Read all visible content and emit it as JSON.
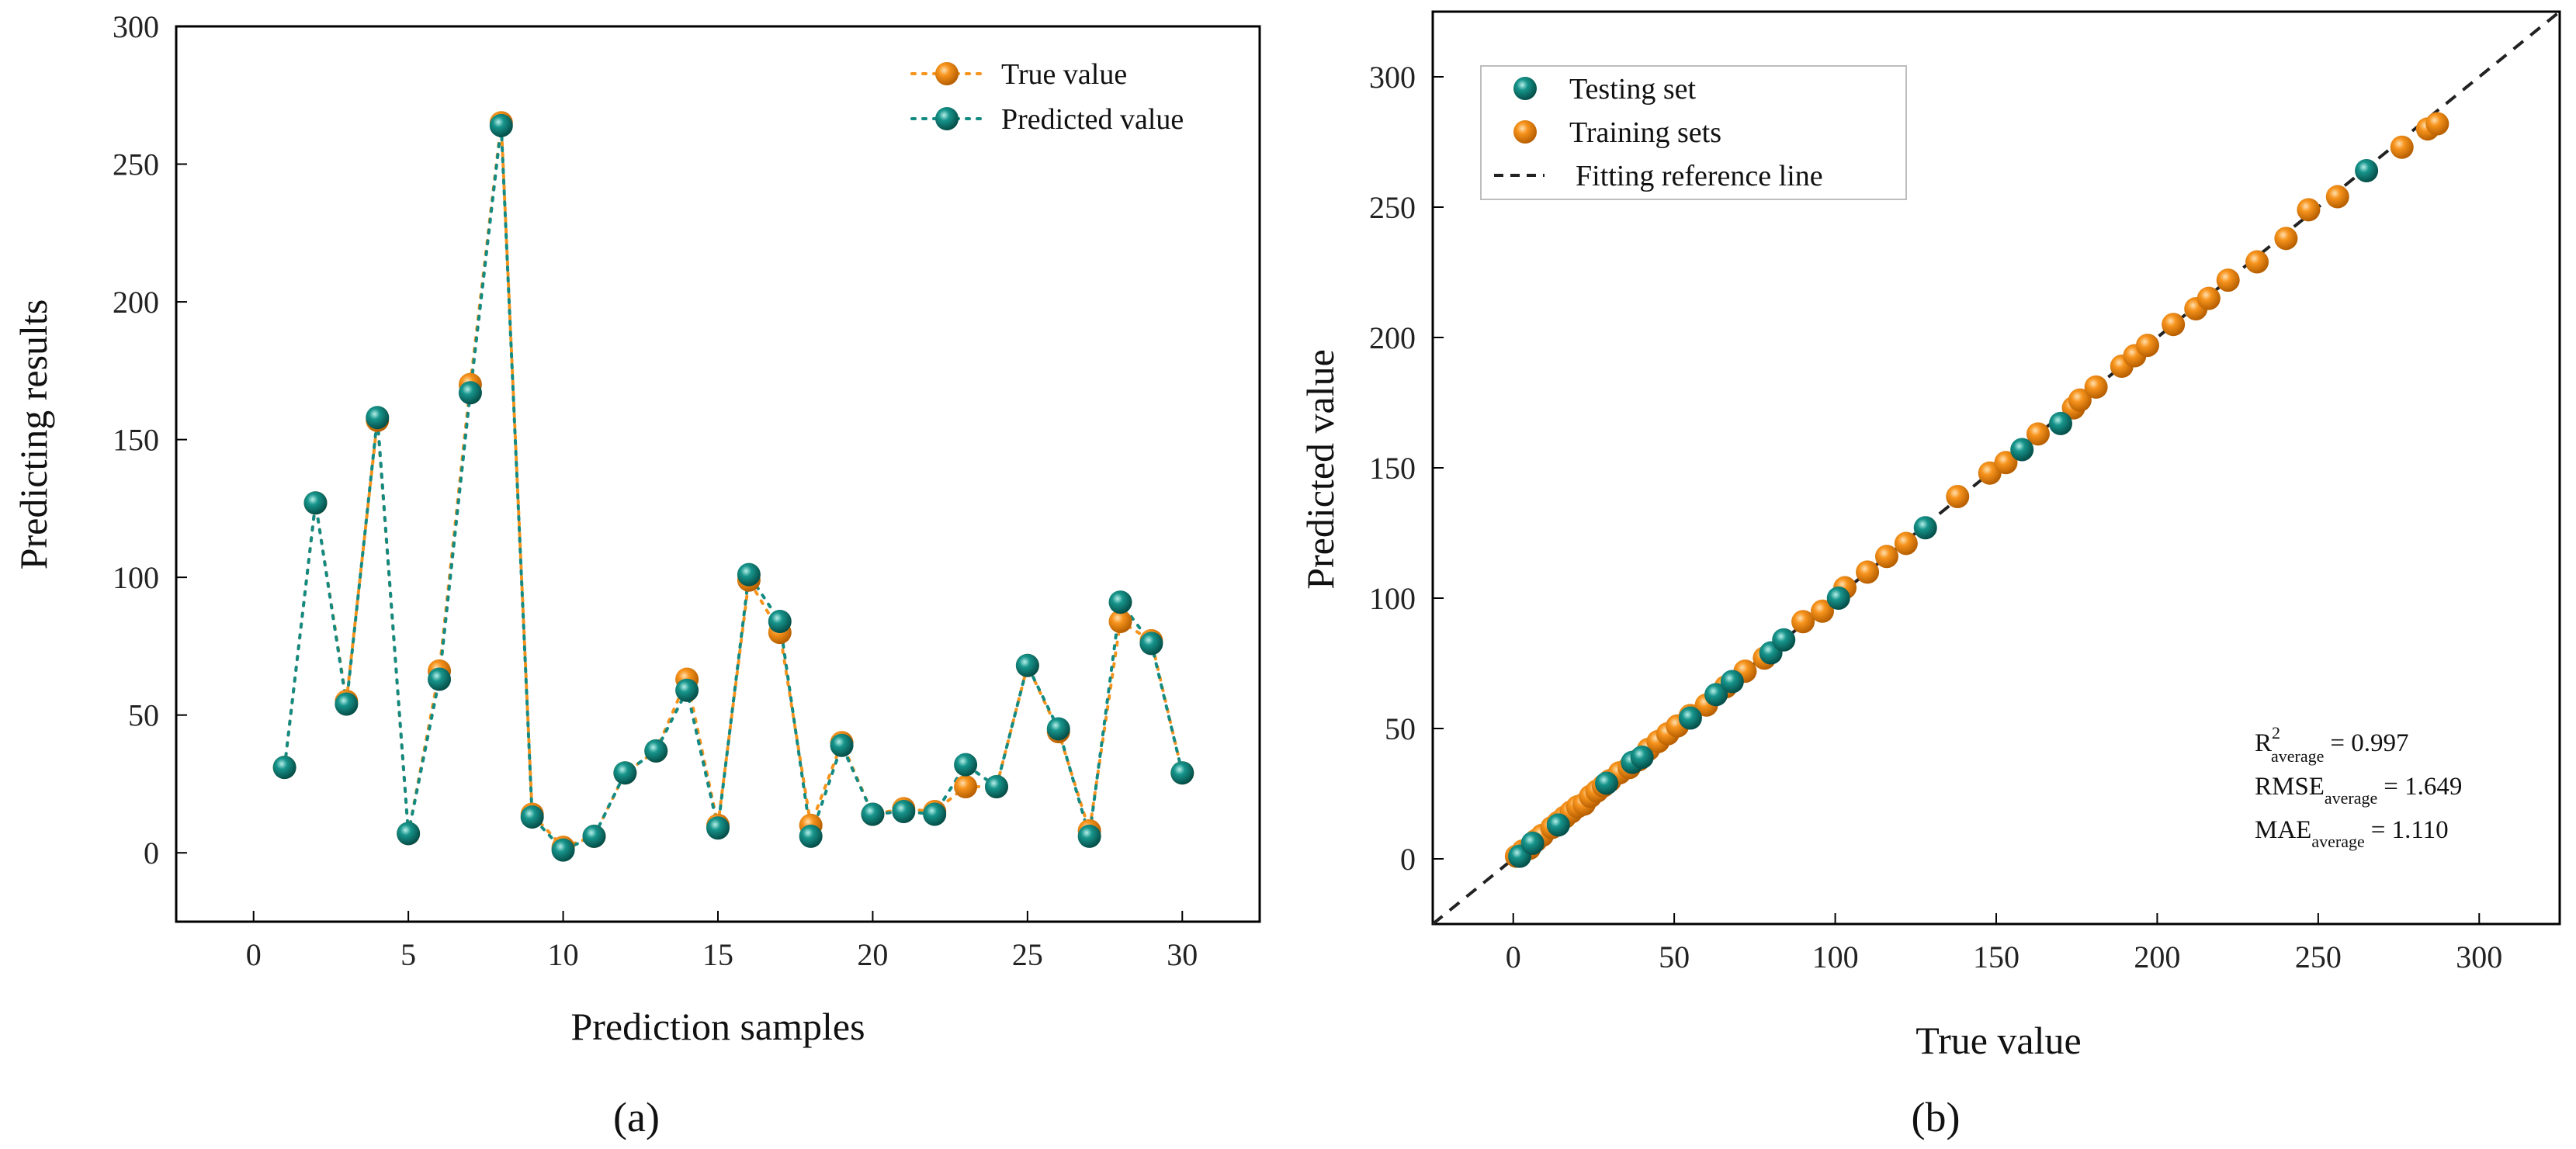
{
  "colors": {
    "true_orange": "#F7941D",
    "pred_teal": "#138A82",
    "ref_line": "#222222"
  },
  "chart_data": [
    {
      "id": "a",
      "type": "line",
      "caption": "(a)",
      "xlabel": "Prediction samples",
      "ylabel": "Predicting results",
      "xlim": [
        -2.5,
        32.5
      ],
      "ylim": [
        -25,
        300
      ],
      "xticks": [
        0,
        5,
        10,
        15,
        20,
        25,
        30
      ],
      "yticks": [
        0,
        50,
        100,
        150,
        200,
        250,
        300
      ],
      "x": [
        1,
        2,
        3,
        4,
        5,
        6,
        7,
        8,
        9,
        10,
        11,
        12,
        13,
        14,
        15,
        16,
        17,
        18,
        19,
        20,
        21,
        22,
        23,
        24,
        25,
        26,
        27,
        28,
        29,
        30
      ],
      "series": [
        {
          "name": "True value",
          "marker": "orange",
          "values": [
            31,
            127,
            55,
            157,
            7,
            66,
            170,
            265,
            14,
            2,
            6,
            29,
            37,
            63,
            10,
            99,
            80,
            10,
            40,
            14,
            16,
            15,
            24,
            24,
            68,
            44,
            8,
            84,
            77,
            29
          ]
        },
        {
          "name": "Predicted value",
          "marker": "teal",
          "values": [
            31,
            127,
            54,
            158,
            7,
            63,
            167,
            264,
            13,
            1,
            6,
            29,
            37,
            59,
            9,
            101,
            84,
            6,
            39,
            14,
            15,
            14,
            32,
            24,
            68,
            45,
            6,
            91,
            76,
            29
          ]
        }
      ],
      "legend": [
        "True value",
        "Predicted value"
      ],
      "legend_position": "top-right"
    },
    {
      "id": "b",
      "type": "scatter",
      "caption": "(b)",
      "xlabel": "True value",
      "ylabel": "Predicted value",
      "xlim": [
        -25,
        325
      ],
      "ylim": [
        -25,
        325
      ],
      "xticks": [
        0,
        50,
        100,
        150,
        200,
        250,
        300
      ],
      "yticks": [
        0,
        50,
        100,
        150,
        200,
        250,
        300
      ],
      "legend": [
        "Testing set",
        "Training sets",
        "Fitting reference line"
      ],
      "legend_position": "top-left",
      "stats": [
        {
          "label": "R",
          "sup": "2",
          "sub": "average",
          "value": "= 0.997"
        },
        {
          "label": "RMSE",
          "sup": "",
          "sub": "average",
          "value": "= 1.649"
        },
        {
          "label": "MAE",
          "sup": "",
          "sub": "average",
          "value": "= 1.110"
        }
      ],
      "series": [
        {
          "name": "Training sets",
          "marker": "orange",
          "x": [
            1,
            3,
            5,
            7,
            9,
            12,
            14,
            16,
            18,
            20,
            22,
            24,
            26,
            28,
            30,
            33,
            36,
            39,
            42,
            45,
            48,
            51,
            55,
            60,
            66,
            72,
            78,
            90,
            96,
            103,
            110,
            116,
            122,
            138,
            148,
            153,
            163,
            174,
            176,
            181,
            189,
            193,
            197,
            205,
            212,
            216,
            222,
            231,
            240,
            247,
            256,
            276,
            284,
            287
          ],
          "y": [
            1,
            3,
            4,
            7,
            9,
            12,
            14,
            16,
            18,
            20,
            21,
            24,
            26,
            28,
            30,
            33,
            35,
            38,
            42,
            45,
            48,
            51,
            55,
            59,
            66,
            72,
            77,
            91,
            95,
            104,
            110,
            116,
            121,
            139,
            148,
            152,
            163,
            173,
            176,
            181,
            189,
            193,
            197,
            205,
            211,
            215,
            222,
            229,
            238,
            249,
            254,
            273,
            280,
            282
          ]
        },
        {
          "name": "Testing set",
          "marker": "teal",
          "x": [
            2,
            6,
            14,
            29,
            37,
            40,
            55,
            63,
            68,
            80,
            84,
            101,
            128,
            158,
            170,
            265
          ],
          "y": [
            1,
            6,
            13,
            29,
            37,
            39,
            54,
            63,
            68,
            79,
            84,
            100,
            127,
            157,
            167,
            264
          ]
        }
      ]
    }
  ]
}
